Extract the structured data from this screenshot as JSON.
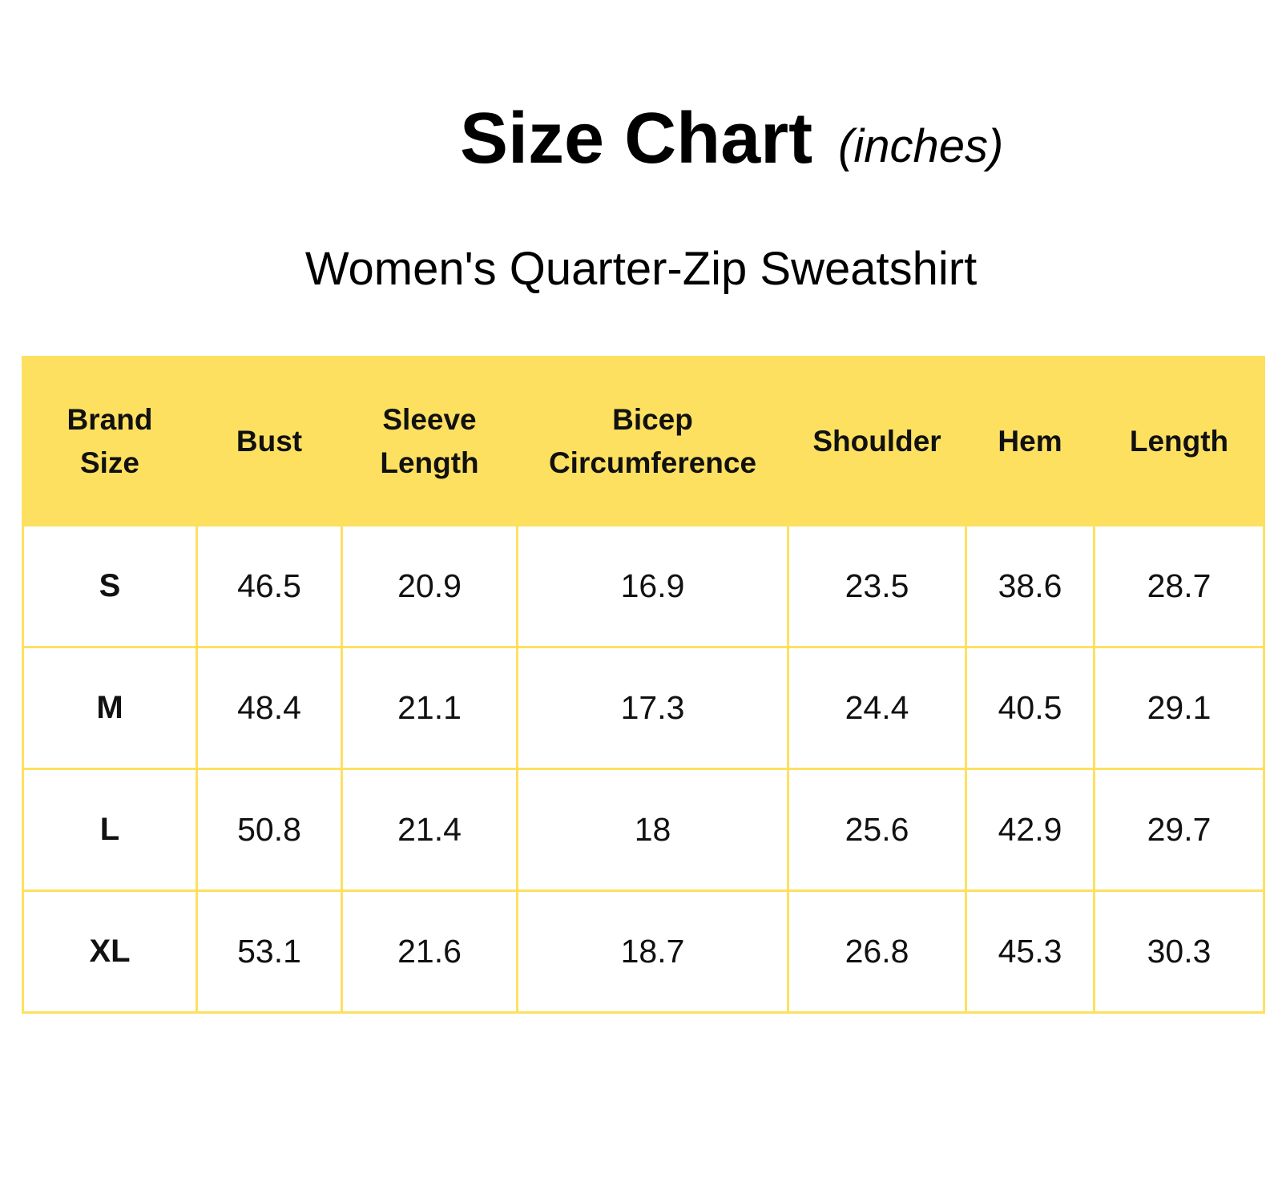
{
  "title": "Size Chart",
  "title_unit": "(inches)",
  "subtitle": "Women's Quarter-Zip Sweatshirt",
  "colors": {
    "header_background": "#fde060",
    "border": "#fde060",
    "text": "#111111"
  },
  "table": {
    "headers": [
      [
        "Brand",
        "Size"
      ],
      [
        "Bust"
      ],
      [
        "Sleeve",
        "Length"
      ],
      [
        "Bicep",
        "Circumference"
      ],
      [
        "Shoulder"
      ],
      [
        "Hem"
      ],
      [
        "Length"
      ]
    ],
    "rows": [
      [
        "S",
        "46.5",
        "20.9",
        "16.9",
        "23.5",
        "38.6",
        "28.7"
      ],
      [
        "M",
        "48.4",
        "21.1",
        "17.3",
        "24.4",
        "40.5",
        "29.1"
      ],
      [
        "L",
        "50.8",
        "21.4",
        "18",
        "25.6",
        "42.9",
        "29.7"
      ],
      [
        "XL",
        "53.1",
        "21.6",
        "18.7",
        "26.8",
        "45.3",
        "30.3"
      ]
    ]
  }
}
